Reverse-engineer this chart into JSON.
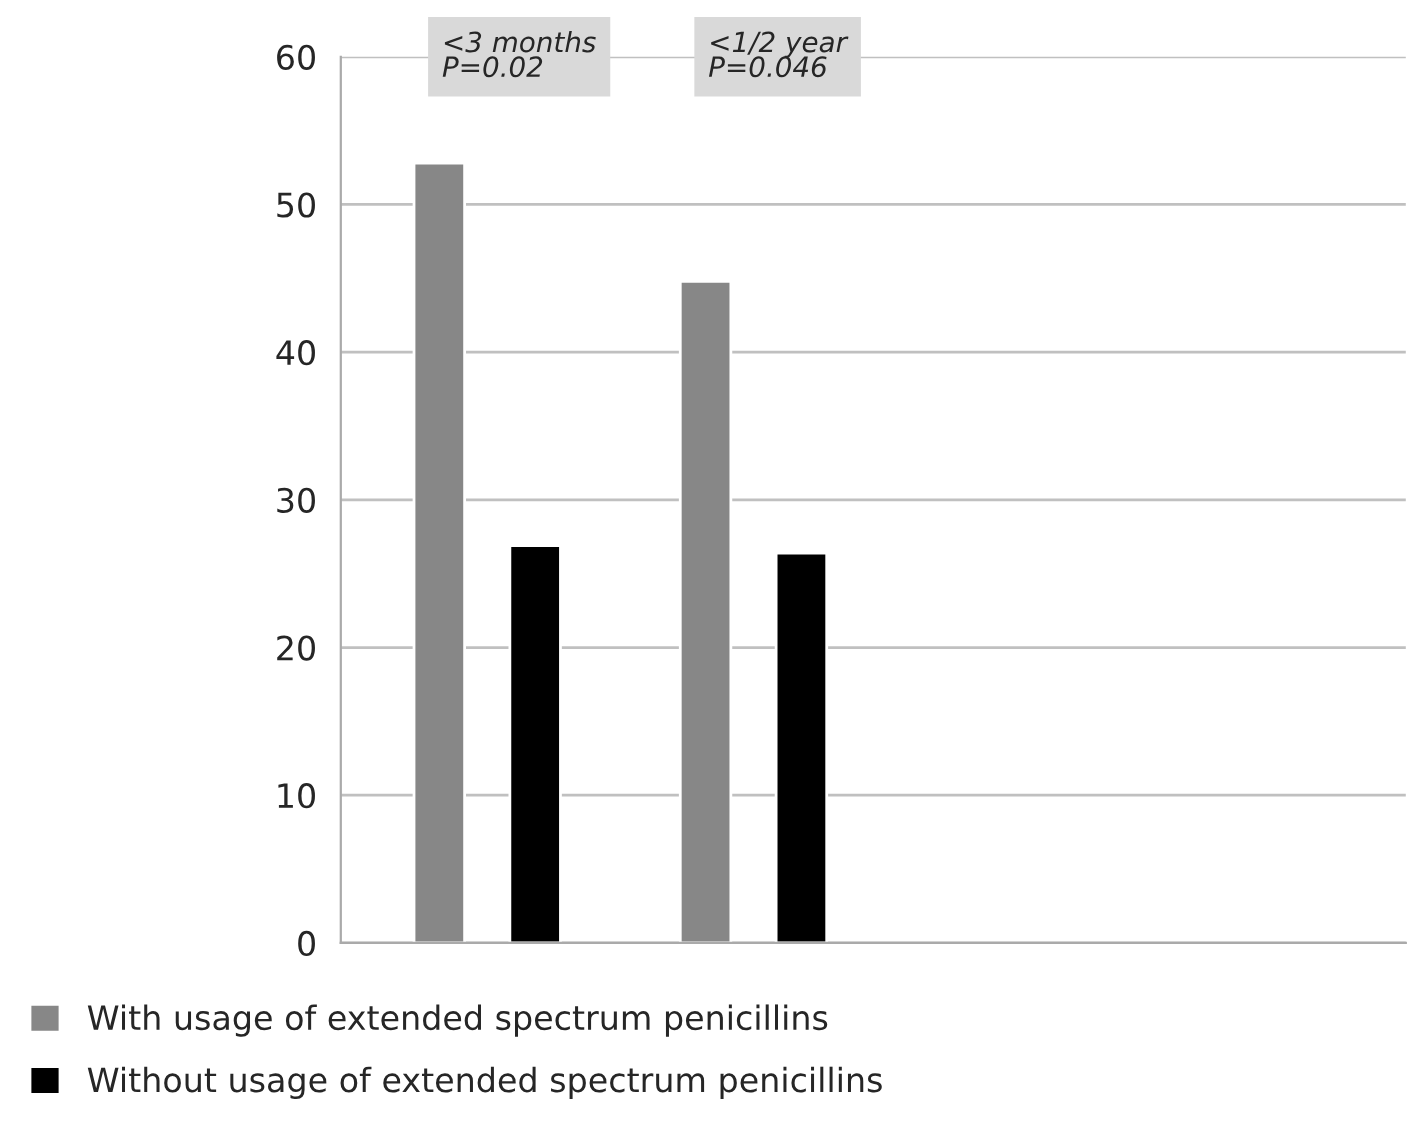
{
  "chart_data": {
    "type": "bar",
    "categories": [
      null,
      null,
      null,
      null
    ],
    "series": [
      {
        "name": "With usage of extended spectrum penicillins",
        "color": "#878787",
        "values": [
          52.8,
          44.8,
          null,
          null
        ]
      },
      {
        "name": "Without usage of extended spectrum penicillins",
        "color": "#000000",
        "values": [
          26.9,
          26.4,
          null,
          null
        ]
      }
    ],
    "annotations": [
      "<3 months\nP=0.02",
      "<1/2 year\nP=0.046"
    ],
    "ylim": [
      0,
      60
    ],
    "yticks": [
      0,
      10,
      20,
      30,
      40,
      50,
      60
    ],
    "grid": "y",
    "legend": "bottom left"
  }
}
